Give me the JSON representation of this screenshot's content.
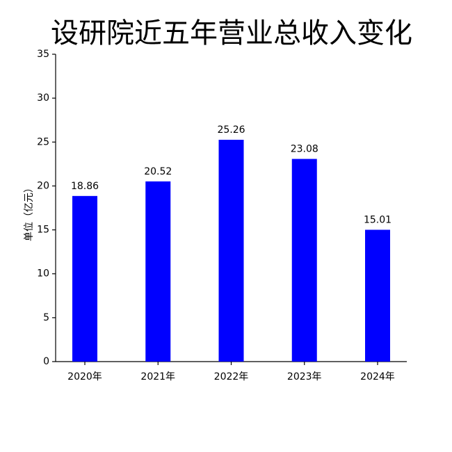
{
  "chart_data": {
    "type": "bar",
    "title": "设研院近五年营业总收入变化",
    "y_label": "单位（亿元）",
    "categories": [
      "2020年",
      "2021年",
      "2022年",
      "2023年",
      "2024年"
    ],
    "values": [
      18.86,
      20.52,
      25.26,
      23.08,
      15.01
    ],
    "color": "#0000ff",
    "ylim": [
      0,
      35
    ],
    "yticks": [
      0,
      5,
      10,
      15,
      20,
      25,
      30,
      35
    ],
    "grid": false,
    "data_labels": true
  }
}
